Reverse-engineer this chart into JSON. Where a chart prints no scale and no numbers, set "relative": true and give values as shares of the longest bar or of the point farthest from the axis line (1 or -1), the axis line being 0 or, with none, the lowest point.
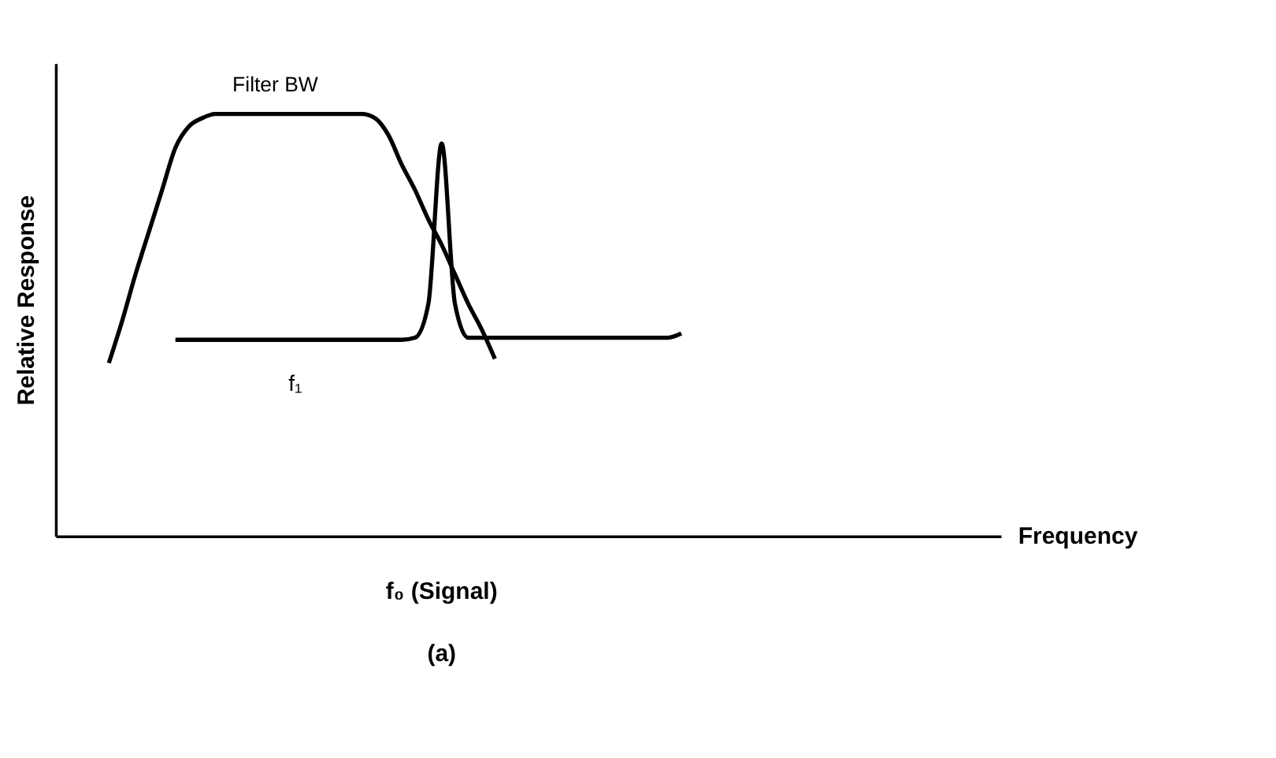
{
  "chart_data": {
    "type": "line",
    "relative": true,
    "ylabel": "Relative Response",
    "xlabel": "Frequency",
    "legend": false,
    "grid": false,
    "marker": "none",
    "line_style": "solid",
    "categories": [
      null,
      null,
      null,
      null,
      null,
      null,
      null,
      null,
      null,
      null,
      null,
      null,
      null,
      null,
      null,
      null,
      null,
      null,
      null,
      null,
      null,
      null,
      null,
      null,
      null,
      null,
      null,
      null,
      null,
      null,
      null,
      null,
      null,
      null,
      null,
      null,
      null,
      null,
      null,
      null,
      null,
      null,
      null,
      null,
      null,
      null,
      null,
      null,
      null,
      null,
      null,
      null,
      null,
      null,
      null,
      null,
      null,
      null,
      null,
      null,
      null,
      null,
      null,
      null,
      null,
      null,
      null,
      null,
      null,
      null,
      null,
      null
    ],
    "series": [
      {
        "color": "#000000",
        "values": [
          null,
          null,
          null,
          null,
          0.41,
          0.51,
          0.62,
          0.72,
          0.82,
          0.92,
          0.97,
          0.99,
          1.0,
          1.0,
          1.0,
          1.0,
          1.0,
          1.0,
          1.0,
          1.0,
          1.0,
          1.0,
          1.0,
          1.0,
          0.99,
          0.95,
          0.88,
          0.82,
          0.75,
          0.69,
          0.62,
          0.55,
          0.49,
          0.42,
          null,
          null,
          null,
          null,
          null,
          null,
          null,
          null,
          null,
          null,
          null,
          null,
          null,
          null,
          null,
          null,
          null,
          null,
          null,
          null,
          null,
          null,
          null,
          null,
          null,
          null,
          null,
          null,
          null,
          null,
          null,
          null,
          null,
          null,
          null,
          null,
          null,
          null
        ]
      },
      {
        "color": "#000000",
        "values": [
          null,
          null,
          null,
          null,
          null,
          null,
          null,
          null,
          null,
          0.465,
          0.465,
          0.465,
          0.465,
          0.465,
          0.465,
          0.465,
          0.465,
          0.465,
          0.465,
          0.465,
          0.465,
          0.465,
          0.465,
          0.465,
          0.465,
          0.465,
          0.465,
          0.47,
          0.55,
          0.93,
          0.55,
          0.47,
          0.47,
          0.47,
          0.47,
          0.47,
          0.47,
          0.47,
          0.47,
          0.47,
          0.47,
          0.47,
          0.47,
          0.47,
          0.47,
          0.47,
          0.47,
          0.48,
          null,
          null,
          null,
          null,
          null,
          null,
          null,
          null,
          null,
          null,
          null,
          null,
          null,
          null,
          null,
          null,
          null,
          null,
          null,
          null,
          null,
          null,
          null,
          null
        ]
      }
    ],
    "annotations": [
      "Filter BW",
      "f₁",
      "f₀ (Signal)",
      "(a)"
    ]
  }
}
